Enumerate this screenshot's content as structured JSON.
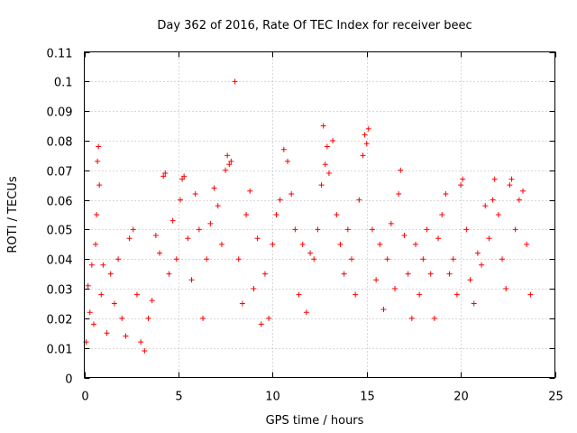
{
  "chart_data": {
    "type": "scatter",
    "title": "Day 362 of 2016, Rate Of TEC Index for receiver beec",
    "xlabel": "GPS time / hours",
    "ylabel": "ROTI / TECUs",
    "xlim": [
      0,
      25
    ],
    "ylim": [
      0,
      0.11
    ],
    "xticks": [
      0,
      5,
      10,
      15,
      20,
      25
    ],
    "yticks": [
      0,
      0.01,
      0.02,
      0.03,
      0.04,
      0.05,
      0.06,
      0.07,
      0.08,
      0.09,
      0.1,
      0.11
    ],
    "xtick_labels": [
      "0",
      "5",
      "10",
      "15",
      "20",
      "25"
    ],
    "ytick_labels": [
      "0",
      "0.01",
      "0.02",
      "0.03",
      "0.04",
      "0.05",
      "0.06",
      "0.07",
      "0.08",
      "0.09",
      "0.1",
      "0.11"
    ],
    "grid": true,
    "marker": "plus",
    "color": "#ff0000",
    "data_x_range": [
      0,
      23.75
    ],
    "series": [
      {
        "points": [
          [
            0.1,
            0.012
          ],
          [
            0.2,
            0.031
          ],
          [
            0.3,
            0.022
          ],
          [
            0.4,
            0.038
          ],
          [
            0.5,
            0.018
          ],
          [
            0.6,
            0.045
          ],
          [
            0.65,
            0.055
          ],
          [
            0.7,
            0.073
          ],
          [
            0.75,
            0.078
          ],
          [
            0.8,
            0.065
          ],
          [
            0.9,
            0.028
          ],
          [
            1.0,
            0.038
          ],
          [
            1.2,
            0.015
          ],
          [
            1.4,
            0.035
          ],
          [
            1.6,
            0.025
          ],
          [
            1.8,
            0.04
          ],
          [
            2.0,
            0.02
          ],
          [
            2.2,
            0.014
          ],
          [
            2.4,
            0.047
          ],
          [
            2.6,
            0.05
          ],
          [
            2.8,
            0.028
          ],
          [
            3.0,
            0.012
          ],
          [
            3.2,
            0.009
          ],
          [
            3.4,
            0.02
          ],
          [
            3.6,
            0.026
          ],
          [
            3.8,
            0.048
          ],
          [
            4.0,
            0.042
          ],
          [
            4.2,
            0.068
          ],
          [
            4.3,
            0.069
          ],
          [
            4.5,
            0.035
          ],
          [
            4.7,
            0.053
          ],
          [
            4.9,
            0.04
          ],
          [
            5.1,
            0.06
          ],
          [
            5.2,
            0.067
          ],
          [
            5.3,
            0.068
          ],
          [
            5.5,
            0.047
          ],
          [
            5.7,
            0.033
          ],
          [
            5.9,
            0.062
          ],
          [
            6.1,
            0.05
          ],
          [
            6.3,
            0.02
          ],
          [
            6.5,
            0.04
          ],
          [
            6.7,
            0.052
          ],
          [
            6.9,
            0.064
          ],
          [
            7.1,
            0.058
          ],
          [
            7.3,
            0.045
          ],
          [
            7.5,
            0.07
          ],
          [
            7.6,
            0.075
          ],
          [
            7.7,
            0.072
          ],
          [
            7.8,
            0.073
          ],
          [
            8.0,
            0.1
          ],
          [
            8.2,
            0.04
          ],
          [
            8.4,
            0.025
          ],
          [
            8.6,
            0.055
          ],
          [
            8.8,
            0.063
          ],
          [
            9.0,
            0.03
          ],
          [
            9.2,
            0.047
          ],
          [
            9.4,
            0.018
          ],
          [
            9.6,
            0.035
          ],
          [
            9.8,
            0.02
          ],
          [
            10.0,
            0.045
          ],
          [
            10.2,
            0.055
          ],
          [
            10.4,
            0.06
          ],
          [
            10.6,
            0.077
          ],
          [
            10.8,
            0.073
          ],
          [
            11.0,
            0.062
          ],
          [
            11.2,
            0.05
          ],
          [
            11.4,
            0.028
          ],
          [
            11.6,
            0.045
          ],
          [
            11.8,
            0.022
          ],
          [
            12.0,
            0.042
          ],
          [
            12.2,
            0.04
          ],
          [
            12.4,
            0.05
          ],
          [
            12.6,
            0.065
          ],
          [
            12.7,
            0.085
          ],
          [
            12.8,
            0.072
          ],
          [
            12.9,
            0.078
          ],
          [
            13.0,
            0.069
          ],
          [
            13.2,
            0.08
          ],
          [
            13.4,
            0.055
          ],
          [
            13.6,
            0.045
          ],
          [
            13.8,
            0.035
          ],
          [
            14.0,
            0.05
          ],
          [
            14.2,
            0.04
          ],
          [
            14.4,
            0.028
          ],
          [
            14.6,
            0.06
          ],
          [
            14.8,
            0.075
          ],
          [
            14.9,
            0.082
          ],
          [
            15.0,
            0.079
          ],
          [
            15.1,
            0.084
          ],
          [
            15.3,
            0.05
          ],
          [
            15.5,
            0.033
          ],
          [
            15.7,
            0.045
          ],
          [
            15.9,
            0.023
          ],
          [
            16.1,
            0.04
          ],
          [
            16.3,
            0.052
          ],
          [
            16.5,
            0.03
          ],
          [
            16.7,
            0.062
          ],
          [
            16.8,
            0.07
          ],
          [
            17.0,
            0.048
          ],
          [
            17.2,
            0.035
          ],
          [
            17.4,
            0.02
          ],
          [
            17.6,
            0.045
          ],
          [
            17.8,
            0.028
          ],
          [
            18.0,
            0.04
          ],
          [
            18.2,
            0.05
          ],
          [
            18.4,
            0.035
          ],
          [
            18.6,
            0.02
          ],
          [
            18.8,
            0.047
          ],
          [
            19.0,
            0.055
          ],
          [
            19.2,
            0.062
          ],
          [
            19.4,
            0.035
          ],
          [
            19.6,
            0.04
          ],
          [
            19.8,
            0.028
          ],
          [
            20.0,
            0.065
          ],
          [
            20.1,
            0.067
          ],
          [
            20.3,
            0.05
          ],
          [
            20.5,
            0.033
          ],
          [
            20.7,
            0.025
          ],
          [
            20.9,
            0.042
          ],
          [
            21.1,
            0.038
          ],
          [
            21.3,
            0.058
          ],
          [
            21.5,
            0.047
          ],
          [
            21.7,
            0.06
          ],
          [
            21.8,
            0.067
          ],
          [
            22.0,
            0.055
          ],
          [
            22.2,
            0.04
          ],
          [
            22.4,
            0.03
          ],
          [
            22.6,
            0.065
          ],
          [
            22.7,
            0.067
          ],
          [
            22.9,
            0.05
          ],
          [
            23.1,
            0.06
          ],
          [
            23.3,
            0.063
          ],
          [
            23.5,
            0.045
          ],
          [
            23.7,
            0.028
          ]
        ]
      }
    ]
  }
}
